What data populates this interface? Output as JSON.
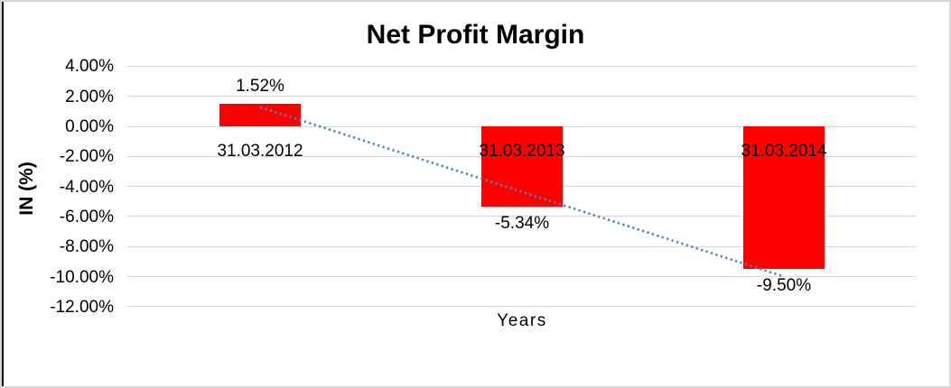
{
  "chart_data": {
    "type": "bar",
    "title": "Net Profit Margin",
    "xlabel": "Years",
    "ylabel": "IN (%)",
    "categories": [
      "31.03.2012",
      "31.03.2013",
      "31.03.2014"
    ],
    "series": [
      {
        "name": "Net Profit Margin",
        "values": [
          1.52,
          -5.34,
          -9.5
        ]
      }
    ],
    "data_labels": [
      "1.52%",
      "-5.34%",
      "-9.50%"
    ],
    "yticks": [
      {
        "label": "4.00%",
        "value": 4
      },
      {
        "label": "2.00%",
        "value": 2
      },
      {
        "label": "0.00%",
        "value": 0
      },
      {
        "label": "-2.00%",
        "value": -2
      },
      {
        "label": "-4.00%",
        "value": -4
      },
      {
        "label": "-6.00%",
        "value": -6
      },
      {
        "label": "-8.00%",
        "value": -8
      },
      {
        "label": "-10.00%",
        "value": -10
      },
      {
        "label": "-12.00%",
        "value": -12
      }
    ],
    "ylim": [
      -12,
      4
    ],
    "grid": true,
    "legend": "none",
    "colors": {
      "bar": "#FF0000",
      "gridline": "#D9D9D9",
      "trendline": "#4F81BD",
      "text": "#000000"
    },
    "trendline": {
      "style": "dotted",
      "shape": "linear",
      "start": {
        "category_index": 0,
        "value": 1.28
      },
      "end": {
        "category_index": 2,
        "value": -10.0
      }
    }
  }
}
